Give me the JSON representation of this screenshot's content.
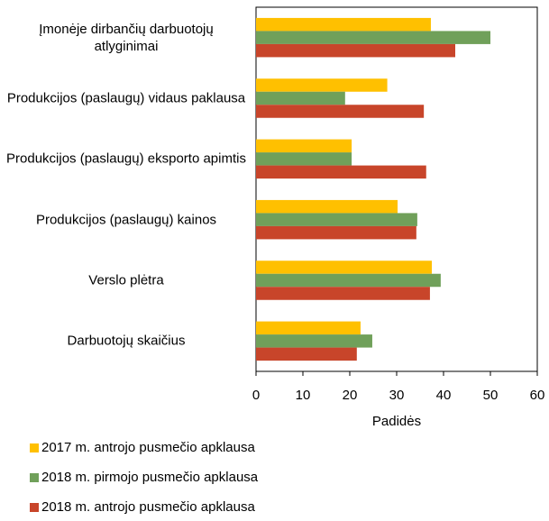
{
  "chart_data": {
    "type": "hbar",
    "categories": [
      "Įmonėje dirbančių darbuotojų atlyginimai",
      "Produkcijos (paslaugų) vidaus paklausa",
      "Produkcijos (paslaugų) eksporto apimtis",
      "Produkcijos (paslaugų) kainos",
      "Verslo plėtra",
      "Darbuotojų skaičius"
    ],
    "series": [
      {
        "name": "2017 m. antrojo pusmečio apklausa",
        "color": "#ffc000",
        "values": [
          37.3,
          28,
          20.4,
          30.2,
          37.5,
          22.3
        ]
      },
      {
        "name": "2018 m. pirmojo pusmečio apklausa",
        "color": "#70a05a",
        "values": [
          50,
          19,
          20.4,
          34.4,
          39.4,
          24.8
        ]
      },
      {
        "name": "2018 m. antrojo pusmečio apklausa",
        "color": "#c8452a",
        "values": [
          42.5,
          35.8,
          36.3,
          34.2,
          37.1,
          21.5
        ]
      }
    ],
    "xlabel": "Padidės",
    "xlim": [
      0,
      60
    ],
    "xticks": [
      0,
      10,
      20,
      30,
      40,
      50,
      60
    ],
    "legend": "bottom"
  }
}
